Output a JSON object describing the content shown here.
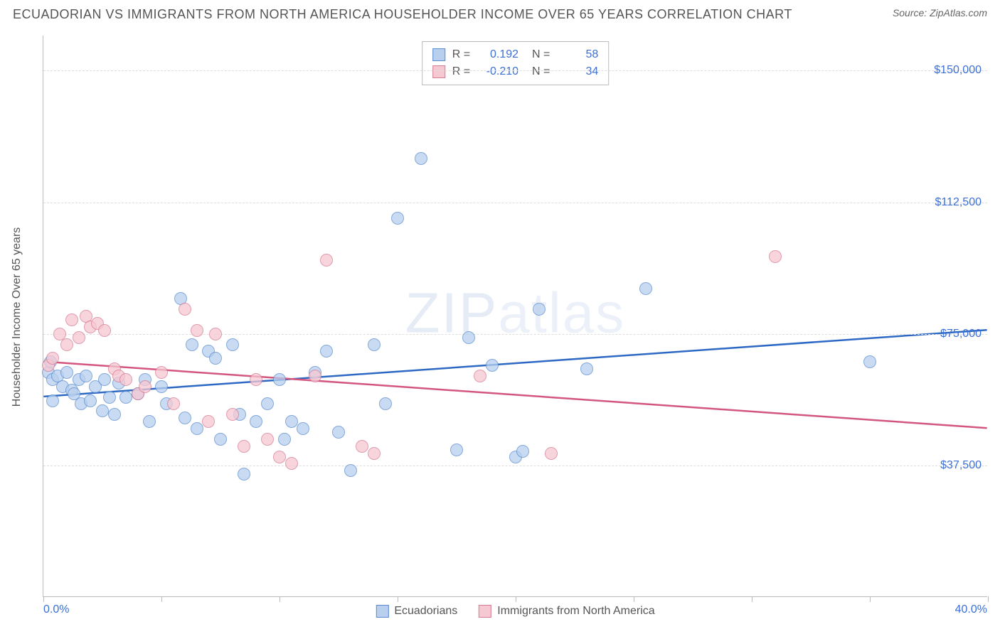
{
  "title": "ECUADORIAN VS IMMIGRANTS FROM NORTH AMERICA HOUSEHOLDER INCOME OVER 65 YEARS CORRELATION CHART",
  "source": "Source: ZipAtlas.com",
  "watermark_a": "ZIP",
  "watermark_b": "atlas",
  "chart": {
    "type": "scatter",
    "xlim": [
      0,
      40
    ],
    "ylim": [
      0,
      160000
    ],
    "xtick_positions": [
      0,
      5,
      10,
      15,
      20,
      25,
      30,
      35,
      40
    ],
    "xaxis_min_label": "0.0%",
    "xaxis_max_label": "40.0%",
    "yaxis_title": "Householder Income Over 65 years",
    "ygrid": [
      {
        "v": 37500,
        "label": "$37,500"
      },
      {
        "v": 75000,
        "label": "$75,000"
      },
      {
        "v": 112500,
        "label": "$112,500"
      },
      {
        "v": 150000,
        "label": "$150,000"
      }
    ],
    "colors": {
      "series1_fill": "#b8d0ee",
      "series1_stroke": "#5a8ccf",
      "series1_line": "#2d69c4",
      "series2_fill": "#f6c8d2",
      "series2_stroke": "#d77a94",
      "series2_line": "#d3567e",
      "grid": "#dddddd",
      "axis": "#bbbbbb",
      "label_blue": "#3b6fd6",
      "text": "#555555"
    },
    "marker_radius": 9,
    "marker_opacity": 0.75,
    "series": [
      {
        "name": "Ecuadorians",
        "color_key": "series1",
        "R": "0.192",
        "N": "58",
        "trend": {
          "y_at_xmin": 57000,
          "y_at_xmax": 76000
        },
        "points": [
          [
            0.2,
            64000
          ],
          [
            0.3,
            67000
          ],
          [
            0.4,
            62000
          ],
          [
            0.4,
            56000
          ],
          [
            0.6,
            63000
          ],
          [
            0.8,
            60000
          ],
          [
            1.0,
            64000
          ],
          [
            1.2,
            59000
          ],
          [
            1.3,
            58000
          ],
          [
            1.5,
            62000
          ],
          [
            1.6,
            55000
          ],
          [
            1.8,
            63000
          ],
          [
            2.0,
            56000
          ],
          [
            2.2,
            60000
          ],
          [
            2.5,
            53000
          ],
          [
            2.6,
            62000
          ],
          [
            2.8,
            57000
          ],
          [
            3.0,
            52000
          ],
          [
            3.2,
            61000
          ],
          [
            3.5,
            57000
          ],
          [
            4.0,
            58000
          ],
          [
            4.3,
            62000
          ],
          [
            4.5,
            50000
          ],
          [
            5.0,
            60000
          ],
          [
            5.2,
            55000
          ],
          [
            5.8,
            85000
          ],
          [
            6.0,
            51000
          ],
          [
            6.3,
            72000
          ],
          [
            6.5,
            48000
          ],
          [
            7.0,
            70000
          ],
          [
            7.3,
            68000
          ],
          [
            7.5,
            45000
          ],
          [
            8.0,
            72000
          ],
          [
            8.3,
            52000
          ],
          [
            8.5,
            35000
          ],
          [
            9.0,
            50000
          ],
          [
            9.5,
            55000
          ],
          [
            10.0,
            62000
          ],
          [
            10.2,
            45000
          ],
          [
            10.5,
            50000
          ],
          [
            11.0,
            48000
          ],
          [
            11.5,
            64000
          ],
          [
            12.0,
            70000
          ],
          [
            12.5,
            47000
          ],
          [
            13.0,
            36000
          ],
          [
            14.0,
            72000
          ],
          [
            14.5,
            55000
          ],
          [
            15.0,
            108000
          ],
          [
            16.0,
            125000
          ],
          [
            17.5,
            42000
          ],
          [
            18.0,
            74000
          ],
          [
            19.0,
            66000
          ],
          [
            20.0,
            40000
          ],
          [
            20.3,
            41500
          ],
          [
            21.0,
            82000
          ],
          [
            23.0,
            65000
          ],
          [
            25.5,
            88000
          ],
          [
            35.0,
            67000
          ]
        ]
      },
      {
        "name": "Immigrants from North America",
        "color_key": "series2",
        "R": "-0.210",
        "N": "34",
        "trend": {
          "y_at_xmin": 67000,
          "y_at_xmax": 48000
        },
        "points": [
          [
            0.2,
            66000
          ],
          [
            0.4,
            68000
          ],
          [
            0.7,
            75000
          ],
          [
            1.0,
            72000
          ],
          [
            1.2,
            79000
          ],
          [
            1.5,
            74000
          ],
          [
            1.8,
            80000
          ],
          [
            2.0,
            77000
          ],
          [
            2.3,
            78000
          ],
          [
            2.6,
            76000
          ],
          [
            3.0,
            65000
          ],
          [
            3.2,
            63000
          ],
          [
            3.5,
            62000
          ],
          [
            4.0,
            58000
          ],
          [
            4.3,
            60000
          ],
          [
            5.0,
            64000
          ],
          [
            5.5,
            55000
          ],
          [
            6.0,
            82000
          ],
          [
            6.5,
            76000
          ],
          [
            7.0,
            50000
          ],
          [
            7.3,
            75000
          ],
          [
            8.0,
            52000
          ],
          [
            8.5,
            43000
          ],
          [
            9.0,
            62000
          ],
          [
            9.5,
            45000
          ],
          [
            10.0,
            40000
          ],
          [
            10.5,
            38000
          ],
          [
            11.5,
            63000
          ],
          [
            12.0,
            96000
          ],
          [
            13.5,
            43000
          ],
          [
            14.0,
            41000
          ],
          [
            18.5,
            63000
          ],
          [
            21.5,
            41000
          ],
          [
            31.0,
            97000
          ]
        ]
      }
    ]
  }
}
